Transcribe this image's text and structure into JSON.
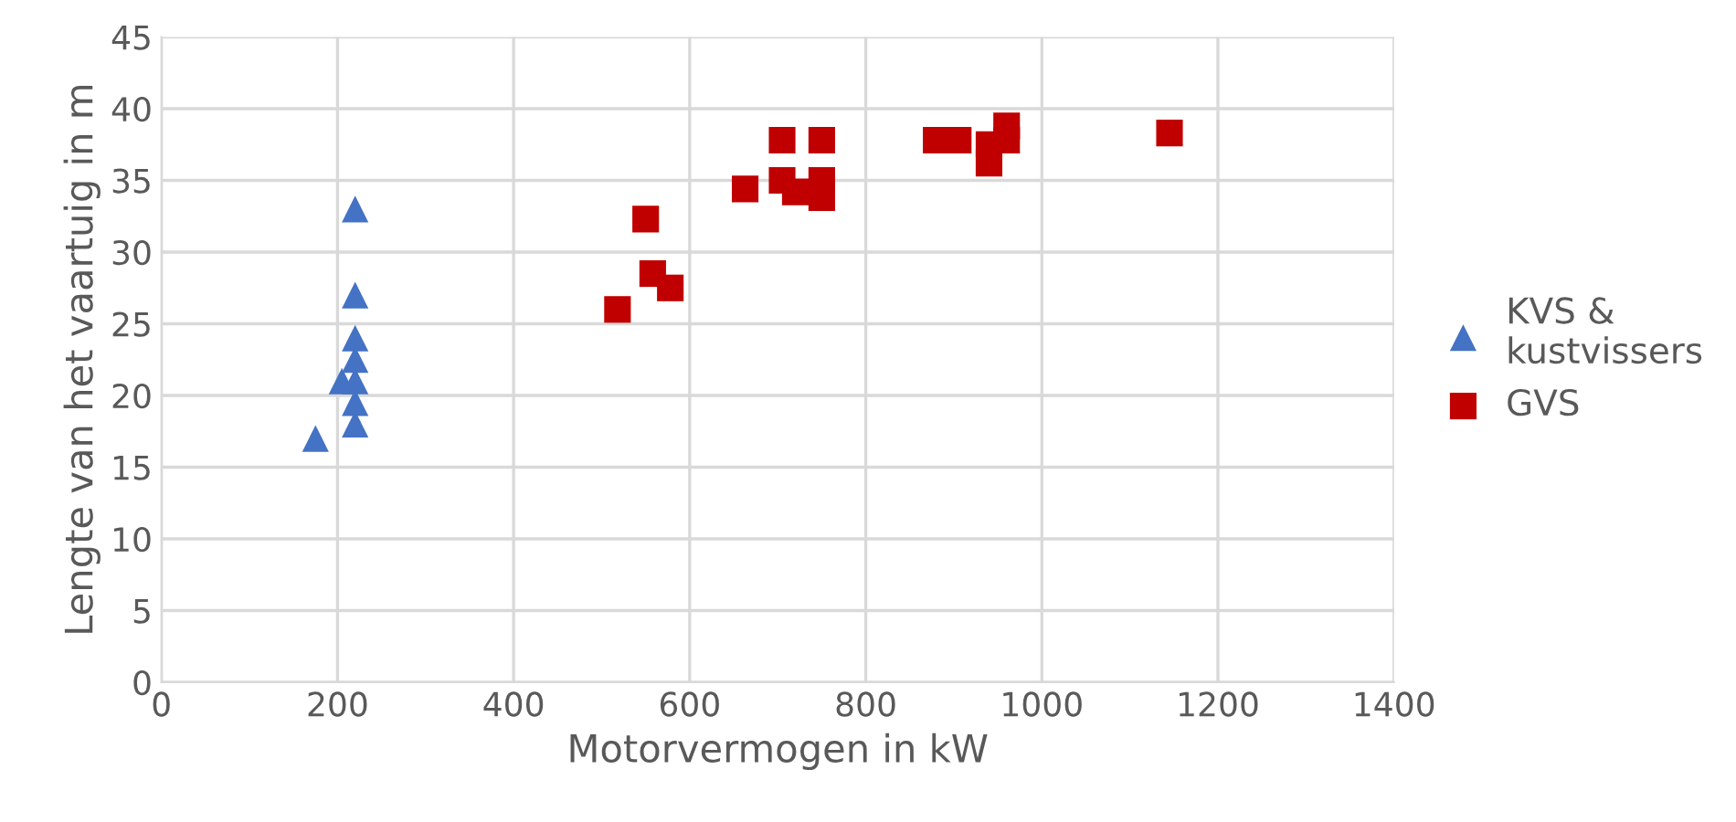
{
  "chart_data": {
    "type": "scatter",
    "xlabel": "Motorvermogen in kW",
    "ylabel": "Lengte van het vaartuig in m",
    "xlim": [
      0,
      1400
    ],
    "xticks": [
      0,
      200,
      400,
      600,
      800,
      1000,
      1200,
      1400
    ],
    "ylim": [
      0,
      45
    ],
    "yticks": [
      0,
      5,
      10,
      15,
      20,
      25,
      30,
      35,
      40,
      45
    ],
    "grid": true,
    "legend": "right",
    "series": [
      {
        "name": "KVS &\nkustvissers",
        "color": "#4472c4",
        "marker": "triangle",
        "x": [
          175,
          205,
          220,
          220,
          220,
          220,
          220,
          220,
          220
        ],
        "values": [
          17,
          21,
          33,
          27,
          24,
          22.5,
          21,
          19.5,
          18
        ]
      },
      {
        "name": "GVS",
        "color": "#c00000",
        "marker": "square",
        "x": [
          518,
          550,
          558,
          578,
          663,
          705,
          705,
          720,
          750,
          750,
          750,
          880,
          905,
          940,
          940,
          960,
          960,
          1145
        ],
        "values": [
          26,
          32.3,
          28.5,
          27.5,
          34.4,
          35,
          37.8,
          34.2,
          37.8,
          35,
          33.8,
          37.8,
          37.8,
          36.2,
          37.5,
          38.8,
          37.8,
          38.3
        ]
      }
    ]
  }
}
